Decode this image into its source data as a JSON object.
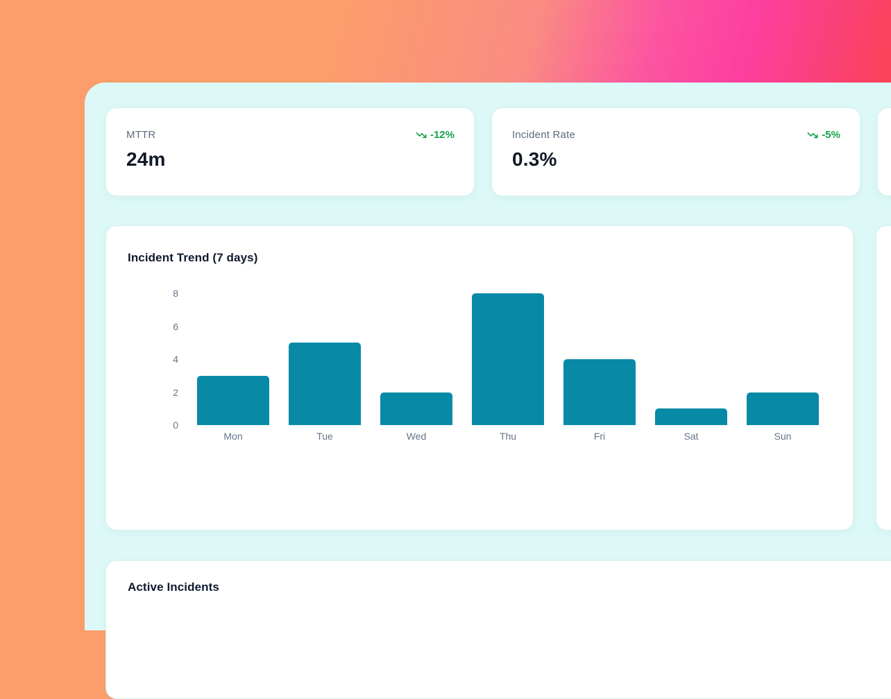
{
  "stats": [
    {
      "label": "MTTR",
      "value": "24m",
      "trend": "-12%",
      "trend_direction": "down"
    },
    {
      "label": "Incident Rate",
      "value": "0.3%",
      "trend": "-5%",
      "trend_direction": "down"
    }
  ],
  "chart_data": {
    "type": "bar",
    "title": "Incident Trend (7 days)",
    "categories": [
      "Mon",
      "Tue",
      "Wed",
      "Thu",
      "Fri",
      "Sat",
      "Sun"
    ],
    "values": [
      3,
      5,
      2,
      8,
      4,
      1,
      2
    ],
    "xlabel": "",
    "ylabel": "",
    "yticks": [
      0,
      2,
      4,
      6,
      8
    ],
    "ylim": [
      0,
      8.3
    ],
    "grid": false,
    "legend": false,
    "bar_color": "#088aa7"
  },
  "incidents": {
    "title": "Active Incidents"
  },
  "colors": {
    "trend_green": "#16a34a",
    "bar_teal": "#088aa7",
    "panel_cyan": "#ddf9f7",
    "gradient_orange": "#fc9e6b",
    "gradient_pink": "#fd3fa0",
    "gradient_red": "#fa4255"
  }
}
